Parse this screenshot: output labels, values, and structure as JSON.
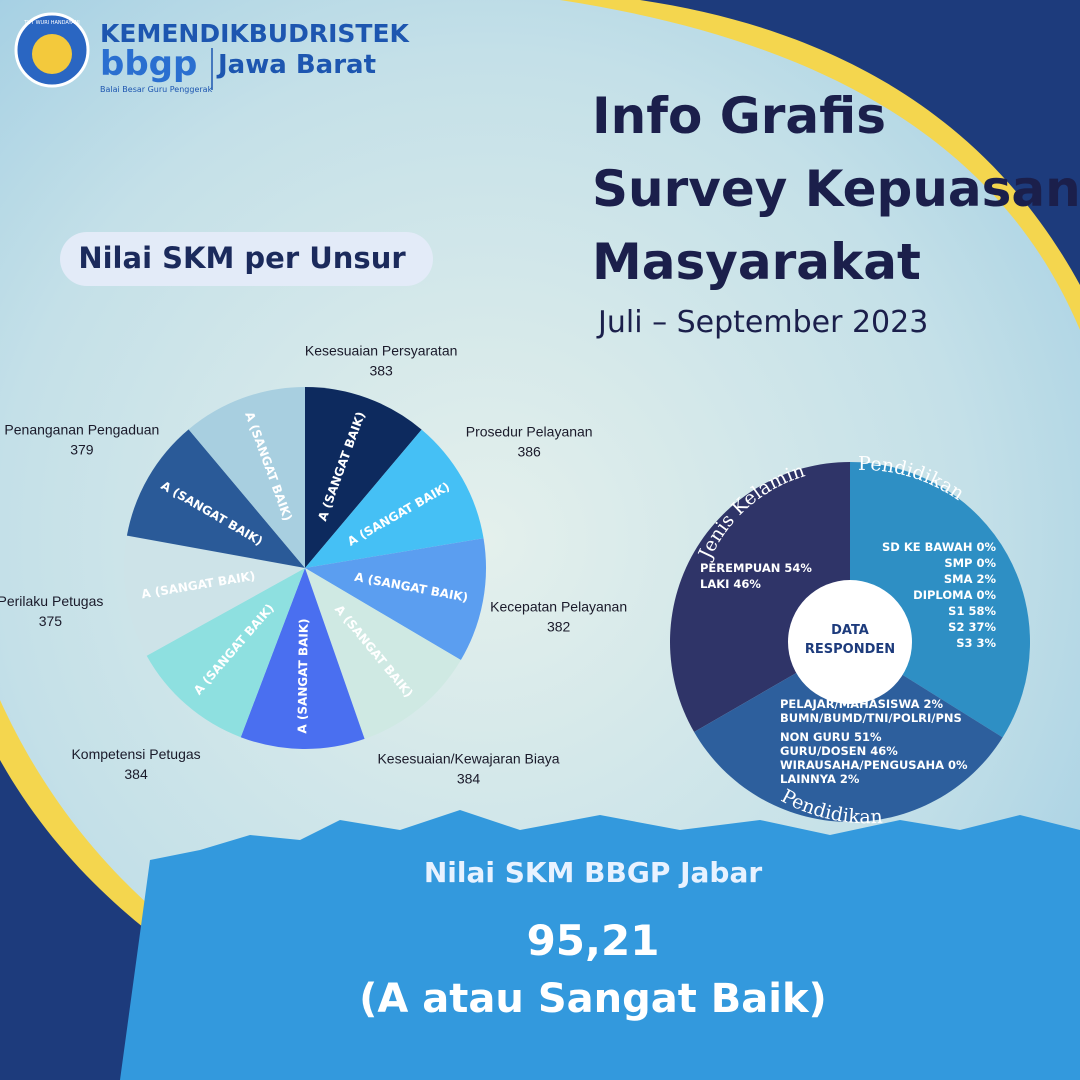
{
  "header": {
    "motto": "TUT WURI HANDAYANI",
    "org": "KEMENDIKBUDRISTEK",
    "brand": "bbgp",
    "region": "Jawa Barat",
    "tagline": "Balai Besar Guru Penggerak"
  },
  "title_lines": [
    "Info Grafis",
    "Survey Kepuasan",
    "Masyarakat"
  ],
  "period": "Juli – September 2023",
  "chart_data": {
    "type": "pie",
    "title": "Nilai SKM per Unsur",
    "categories": [
      "Kesesuaian Persyaratan",
      "Prosedur Pelayanan",
      "Kecepatan Pelayanan",
      "Kesesuaian/Kewajaran Biaya",
      null,
      "Kompetensi Petugas",
      "Perilaku Petugas",
      "Penanganan Pengaduan",
      null
    ],
    "values": [
      383,
      386,
      382,
      384,
      382,
      384,
      375,
      379,
      382
    ],
    "grades": [
      "A (SANGAT BAIK)",
      "A (SANGAT BAIK)",
      "A (SANGAT BAIK)",
      "A (SANGAT BAIK)",
      "A (SANGAT BAIK)",
      "A (SANGAT BAIK)",
      "A (SANGAT BAIK)",
      "A (SANGAT BAIK)",
      "A (SANGAT BAIK)"
    ],
    "colors": [
      "#0d2a5e",
      "#45c0f5",
      "#5b9ef0",
      "#cfe9e3",
      "#4a6ff0",
      "#8ee0e0",
      "#cde3e8",
      "#2a5a98",
      "#a8cfe0"
    ]
  },
  "respondents": {
    "center": [
      "DATA",
      "RESPONDEN"
    ],
    "segments": [
      {
        "label": "Jenis Kelamin",
        "items": [
          "PEREMPUAN 54%",
          "LAKI 46%"
        ]
      },
      {
        "label": "Pendidikan",
        "items": [
          "SD  KE BAWAH 0%",
          "SMP 0%",
          "SMA 2%",
          "DIPLOMA 0%",
          "S1 58%",
          "S2 37%",
          "S3 3%"
        ]
      },
      {
        "label": "Pendidikan",
        "items": [
          "PELAJAR/MAHASISWA 2%",
          "BUMN/BUMD/TNI/POLRI/PNS",
          "NON GURU 51%",
          "GURU/DOSEN 46%",
          "WIRAUSAHA/PENGUSAHA 0%",
          "LAINNYA 2%"
        ]
      }
    ]
  },
  "footer": {
    "label": "Nilai SKM BBGP Jabar",
    "score": "95,21",
    "grade": "(A atau Sangat Baik)"
  }
}
